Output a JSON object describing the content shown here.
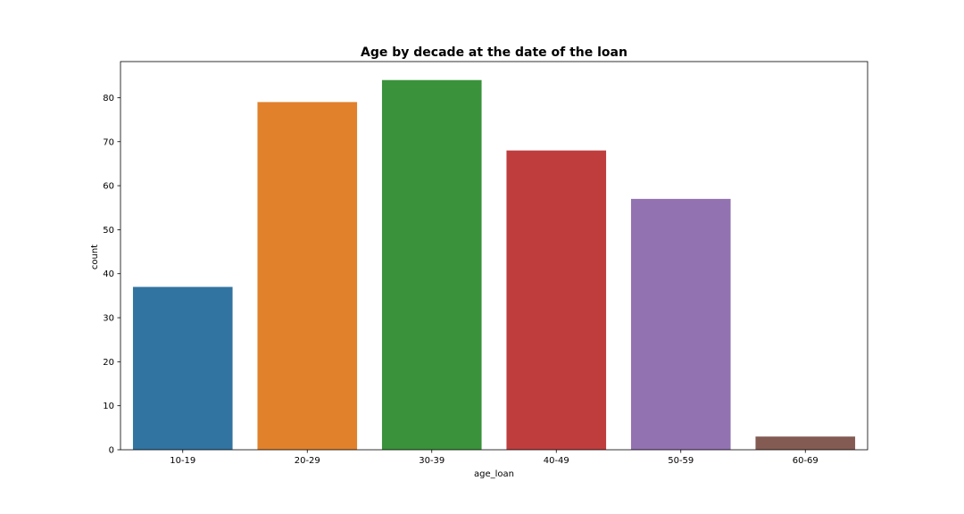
{
  "chart_data": {
    "type": "bar",
    "title": "Age by decade at the date of the loan",
    "xlabel": "age_loan",
    "ylabel": "count",
    "categories": [
      "10-19",
      "20-29",
      "30-39",
      "40-49",
      "50-59",
      "60-69"
    ],
    "values": [
      37,
      79,
      84,
      68,
      57,
      3
    ],
    "colors": [
      "#3274a1",
      "#e1812c",
      "#3a923a",
      "#c03d3e",
      "#9372b2",
      "#845b53"
    ],
    "ylim": [
      0,
      88.2
    ],
    "yticks": [
      0,
      10,
      20,
      30,
      40,
      50,
      60,
      70,
      80
    ],
    "grid": false,
    "legend": "none"
  }
}
